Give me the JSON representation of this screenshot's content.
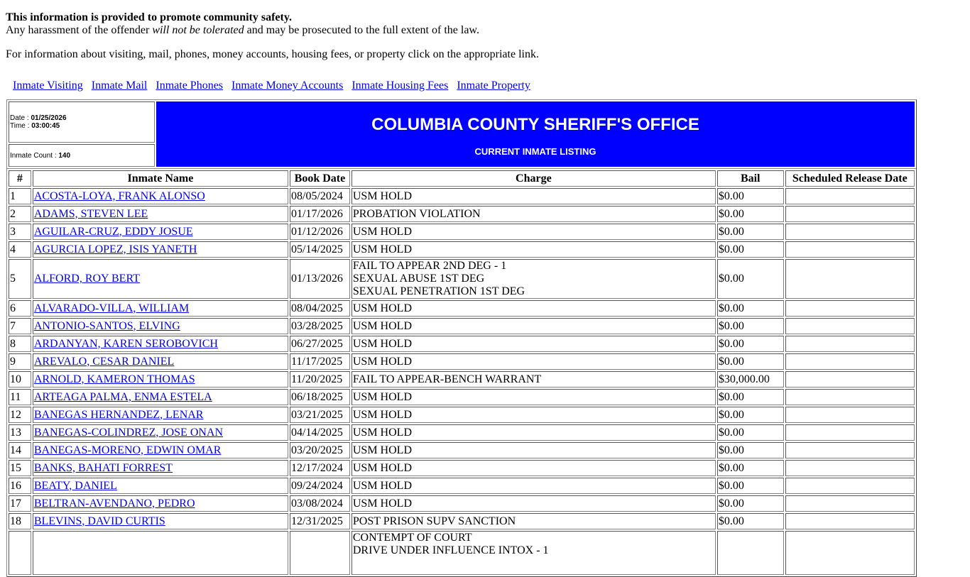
{
  "intro": {
    "line1": "This information is provided to promote community safety.",
    "line2_a": "Any harassment of the offender ",
    "line2_em": "will not be tolerated",
    "line2_b": " and may be prosecuted to the full extent of the law.",
    "line3": "For information about visiting, mail, phones, money accounts, housing fees, or property click on the appropriate link."
  },
  "links": [
    "Inmate Visiting",
    "Inmate Mail",
    "Inmate Phones",
    "Inmate Money Accounts",
    "Inmate Housing Fees",
    "Inmate Property"
  ],
  "header": {
    "date_label": "Date : ",
    "date": "01/25/2026",
    "time_label": "Time : ",
    "time": "03:00:45",
    "count_label": "Inmate Count : ",
    "count": "140",
    "title": "COLUMBIA COUNTY SHERIFF'S OFFICE",
    "subtitle": "CURRENT INMATE LISTING",
    "banner_color": "#0000ff"
  },
  "columns": [
    "#",
    "Inmate Name",
    "Book Date",
    "Charge",
    "Bail",
    "Scheduled Release Date"
  ],
  "rows": [
    {
      "n": "1",
      "name": "ACOSTA-LOYA, FRANK ALONSO",
      "book": "08/05/2024",
      "charges": [
        "USM HOLD"
      ],
      "bail": "$0.00",
      "release": ""
    },
    {
      "n": "2",
      "name": "ADAMS, STEVEN LEE",
      "book": "01/17/2026",
      "charges": [
        "PROBATION VIOLATION"
      ],
      "bail": "$0.00",
      "release": ""
    },
    {
      "n": "3",
      "name": "AGUILAR-CRUZ, EDDY JOSUE",
      "book": "01/12/2026",
      "charges": [
        "USM HOLD"
      ],
      "bail": "$0.00",
      "release": ""
    },
    {
      "n": "4",
      "name": "AGURCIA LOPEZ, ISIS YANETH",
      "book": "05/14/2025",
      "charges": [
        "USM HOLD"
      ],
      "bail": "$0.00",
      "release": ""
    },
    {
      "n": "5",
      "name": "ALFORD, ROY BERT",
      "book": "01/13/2026",
      "charges": [
        "FAIL TO APPEAR 2ND DEG - 1",
        "SEXUAL ABUSE 1ST DEG",
        "SEXUAL PENETRATION 1ST DEG"
      ],
      "bail": "$0.00",
      "release": ""
    },
    {
      "n": "6",
      "name": "ALVARADO-VILLA, WILLIAM",
      "book": "08/04/2025",
      "charges": [
        "USM HOLD"
      ],
      "bail": "$0.00",
      "release": ""
    },
    {
      "n": "7",
      "name": "ANTONIO-SANTOS, ELVING",
      "book": "03/28/2025",
      "charges": [
        "USM HOLD"
      ],
      "bail": "$0.00",
      "release": ""
    },
    {
      "n": "8",
      "name": "ARDANYAN, KAREN SEROBOVICH",
      "book": "06/27/2025",
      "charges": [
        "USM HOLD"
      ],
      "bail": "$0.00",
      "release": ""
    },
    {
      "n": "9",
      "name": "AREVALO, CESAR DANIEL",
      "book": "11/17/2025",
      "charges": [
        "USM HOLD"
      ],
      "bail": "$0.00",
      "release": ""
    },
    {
      "n": "10",
      "name": "ARNOLD, KAMERON THOMAS",
      "book": "11/20/2025",
      "charges": [
        "FAIL TO APPEAR-BENCH WARRANT"
      ],
      "bail": "$30,000.00",
      "release": ""
    },
    {
      "n": "11",
      "name": "ARTEAGA PALMA, ENMA ESTELA",
      "book": "06/18/2025",
      "charges": [
        "USM HOLD"
      ],
      "bail": "$0.00",
      "release": ""
    },
    {
      "n": "12",
      "name": "BANEGAS HERNANDEZ, LENAR",
      "book": "03/21/2025",
      "charges": [
        "USM HOLD"
      ],
      "bail": "$0.00",
      "release": ""
    },
    {
      "n": "13",
      "name": "BANEGAS-COLINDREZ, JOSE ONAN",
      "book": "04/14/2025",
      "charges": [
        "USM HOLD"
      ],
      "bail": "$0.00",
      "release": ""
    },
    {
      "n": "14",
      "name": "BANEGAS-MORENO, EDWIN OMAR",
      "book": "03/20/2025",
      "charges": [
        "USM HOLD"
      ],
      "bail": "$0.00",
      "release": ""
    },
    {
      "n": "15",
      "name": "BANKS, BAHATI FORREST",
      "book": "12/17/2024",
      "charges": [
        "USM HOLD"
      ],
      "bail": "$0.00",
      "release": ""
    },
    {
      "n": "16",
      "name": "BEATY, DANIEL",
      "book": "09/24/2024",
      "charges": [
        "USM HOLD"
      ],
      "bail": "$0.00",
      "release": ""
    },
    {
      "n": "17",
      "name": "BELTRAN-AVENDANO, PEDRO",
      "book": "03/08/2024",
      "charges": [
        "USM HOLD"
      ],
      "bail": "$0.00",
      "release": ""
    },
    {
      "n": "18",
      "name": "BLEVINS, DAVID CURTIS",
      "book": "12/31/2025",
      "charges": [
        "POST PRISON SUPV SANCTION"
      ],
      "bail": "$0.00",
      "release": ""
    },
    {
      "n": "",
      "name": "",
      "book": "",
      "charges": [
        "CONTEMPT OF COURT",
        "DRIVE UNDER INFLUENCE INTOX - 1"
      ],
      "bail": "",
      "release": "",
      "partial": true
    }
  ]
}
